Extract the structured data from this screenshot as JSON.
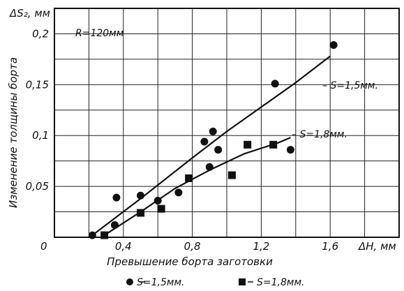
{
  "chart_data": {
    "type": "scatter",
    "title": "",
    "annotation": "R=120мм",
    "xlabel": "Превышение борта заготовки",
    "xunit_label": "ΔH, мм",
    "ylabel": "Изменение толщины борта",
    "yunit_label": "ΔS₂, мм",
    "origin_label": "0",
    "xlim": [
      0,
      2.0
    ],
    "ylim": [
      0,
      0.225
    ],
    "xticks": [
      0.4,
      0.8,
      1.2,
      1.6
    ],
    "xtick_labels": [
      "0,4",
      "0,8",
      "1,2",
      "1,6"
    ],
    "yticks": [
      0.05,
      0.1,
      0.15,
      0.2
    ],
    "ytick_labels": [
      "0,05",
      "0,1",
      "0,15",
      "0,2"
    ],
    "grid": true,
    "legend_position": "bottom",
    "series": [
      {
        "name": "S=1,5мм.",
        "marker": "circle",
        "curve_label": "S=1,5мм.",
        "points": [
          [
            0.22,
            0.002
          ],
          [
            0.35,
            0.012
          ],
          [
            0.36,
            0.039
          ],
          [
            0.5,
            0.041
          ],
          [
            0.6,
            0.036
          ],
          [
            0.72,
            0.044
          ],
          [
            0.87,
            0.094
          ],
          [
            0.9,
            0.069
          ],
          [
            0.92,
            0.104
          ],
          [
            0.95,
            0.086
          ],
          [
            1.28,
            0.151
          ],
          [
            1.37,
            0.086
          ],
          [
            1.62,
            0.189
          ]
        ],
        "trend": [
          [
            0.22,
            0.002
          ],
          [
            0.5,
            0.038
          ],
          [
            0.8,
            0.078
          ],
          [
            1.0,
            0.104
          ],
          [
            1.2,
            0.128
          ],
          [
            1.4,
            0.152
          ],
          [
            1.6,
            0.178
          ]
        ]
      },
      {
        "name": "S=1,8мм.",
        "marker": "square",
        "curve_label": "S=1,8мм.",
        "points": [
          [
            0.29,
            0.002
          ],
          [
            0.5,
            0.024
          ],
          [
            0.62,
            0.028
          ],
          [
            0.78,
            0.058
          ],
          [
            1.03,
            0.061
          ],
          [
            1.12,
            0.091
          ],
          [
            1.27,
            0.091
          ]
        ],
        "trend": [
          [
            0.29,
            0.002
          ],
          [
            0.5,
            0.025
          ],
          [
            0.7,
            0.048
          ],
          [
            0.9,
            0.066
          ],
          [
            1.1,
            0.082
          ],
          [
            1.3,
            0.093
          ],
          [
            1.37,
            0.098
          ]
        ]
      }
    ]
  }
}
